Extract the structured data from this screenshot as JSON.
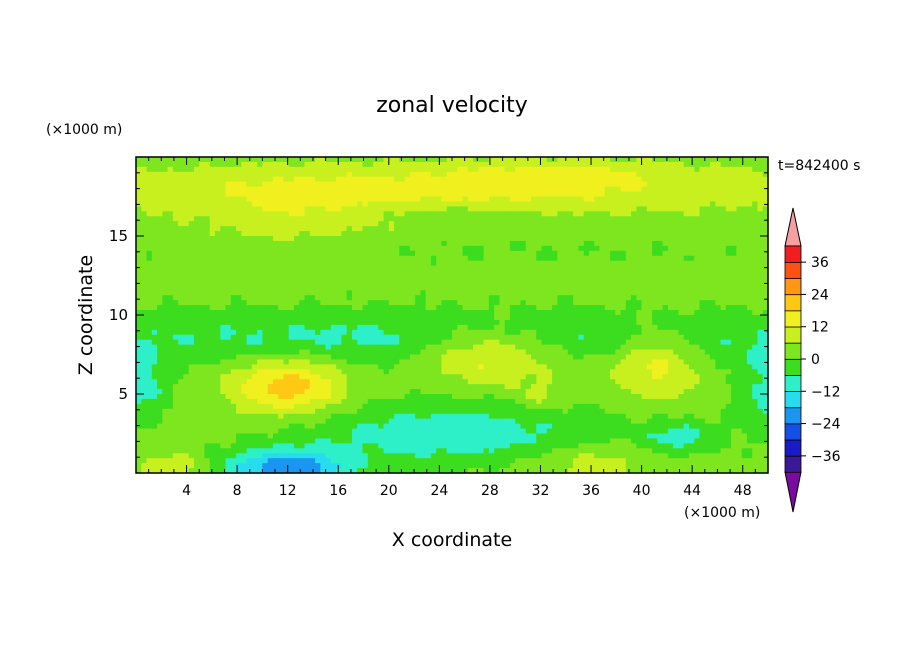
{
  "chart_data": {
    "type": "heatmap",
    "title": "zonal velocity",
    "xlabel": "X coordinate",
    "ylabel": "Z coordinate",
    "x_unit": "(×1000 m)",
    "y_unit": "(×1000 m)",
    "time_label": "t=842400 s",
    "xlim": [
      0,
      50
    ],
    "ylim": [
      0,
      20
    ],
    "x_ticks": [
      4,
      8,
      12,
      16,
      20,
      24,
      28,
      32,
      36,
      40,
      44,
      48
    ],
    "y_ticks": [
      5,
      10,
      15
    ],
    "colorbar": {
      "levels": [
        -42,
        -36,
        -30,
        -24,
        -18,
        -12,
        -6,
        0,
        6,
        12,
        18,
        24,
        30,
        36,
        42
      ],
      "tick_labels": [
        36,
        24,
        12,
        0,
        -12,
        -24,
        -36
      ],
      "colors": [
        "#7a0aa0",
        "#3a1898",
        "#1a1ac8",
        "#1450e6",
        "#1a96f0",
        "#28dcf0",
        "#2ef0c8",
        "#3cdc1e",
        "#7ee61e",
        "#c8f01e",
        "#f0f01e",
        "#ffc814",
        "#ff9614",
        "#ff5014",
        "#f01e1e",
        "#f5a0a0"
      ],
      "extend": "both"
    }
  }
}
